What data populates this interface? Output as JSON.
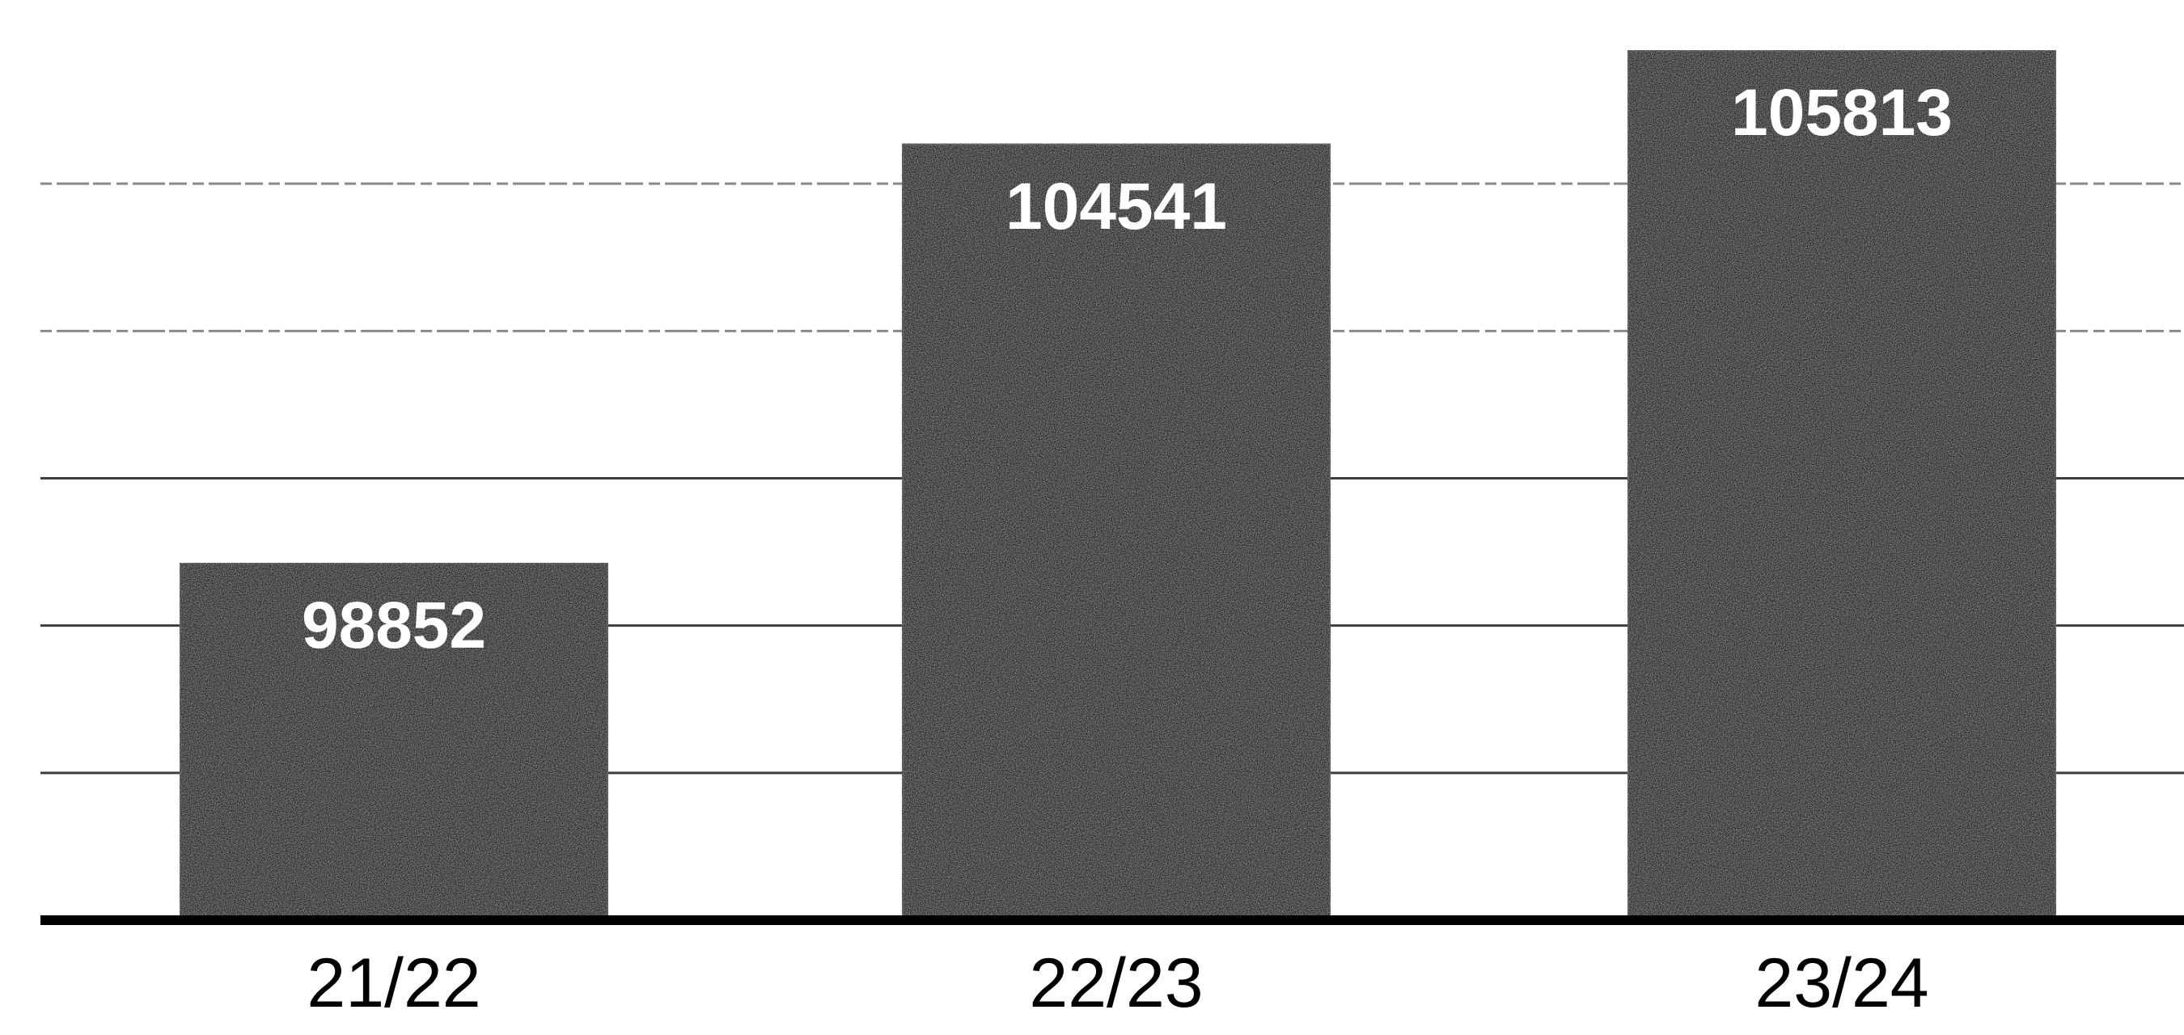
{
  "chart_data": {
    "type": "bar",
    "categories": [
      "21/22",
      "22/23",
      "23/24"
    ],
    "values": [
      98852,
      104541,
      105813
    ],
    "data_labels": [
      "98852",
      "104541",
      "105813"
    ],
    "title": "",
    "xlabel": "",
    "ylabel": "",
    "ylim": [
      94000,
      106000
    ],
    "gridlines": [
      96000,
      98000,
      100000,
      102000,
      104000
    ],
    "grid": true,
    "legend": "none",
    "colors": {
      "bar": "#1a1a1a",
      "background": "#ffffff",
      "axis": "#000000",
      "grid": "#2a2a2a",
      "label": "#ffffff"
    }
  }
}
